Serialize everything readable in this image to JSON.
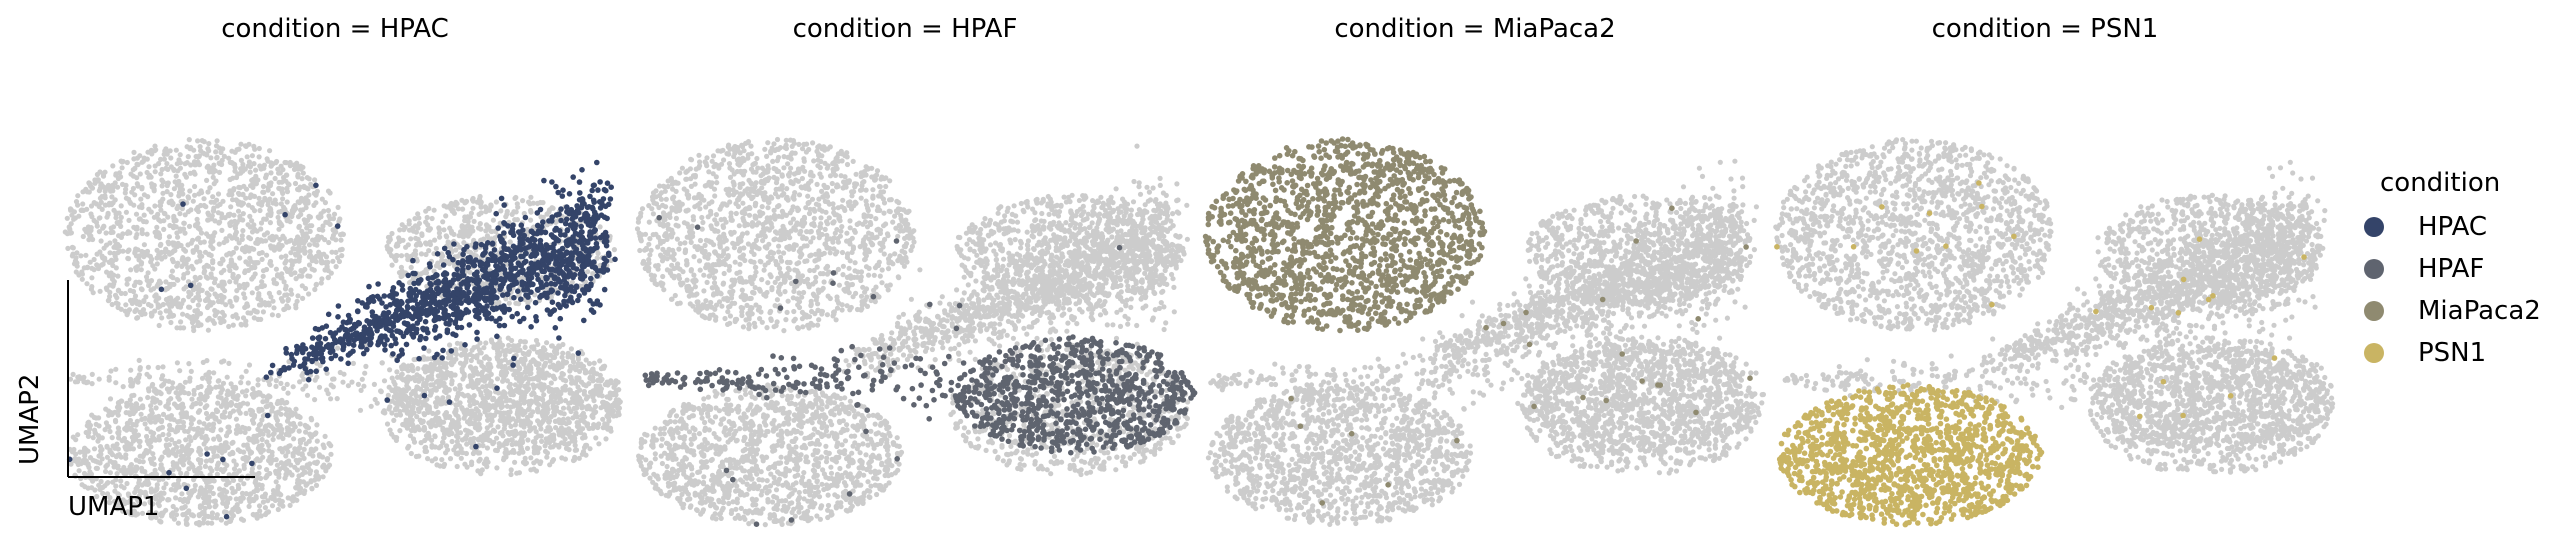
{
  "chart_data": {
    "type": "scatter",
    "facet_variable": "condition",
    "panels": [
      {
        "title": "condition = HPAC",
        "highlight": "HPAC"
      },
      {
        "title": "condition = HPAF",
        "highlight": "HPAF"
      },
      {
        "title": "condition = MiaPaca2",
        "highlight": "MiaPaca2"
      },
      {
        "title": "condition = PSN1",
        "highlight": "PSN1"
      }
    ],
    "xlabel": "UMAP1",
    "ylabel": "UMAP2",
    "background_color": "#cccccc",
    "legend": {
      "title": "condition",
      "placement": "right",
      "items": [
        {
          "label": "HPAC",
          "color": "#344469"
        },
        {
          "label": "HPAF",
          "color": "#5f646f"
        },
        {
          "label": "MiaPaca2",
          "color": "#8f8a70"
        },
        {
          "label": "PSN1",
          "color": "#c9b463"
        }
      ]
    }
  }
}
